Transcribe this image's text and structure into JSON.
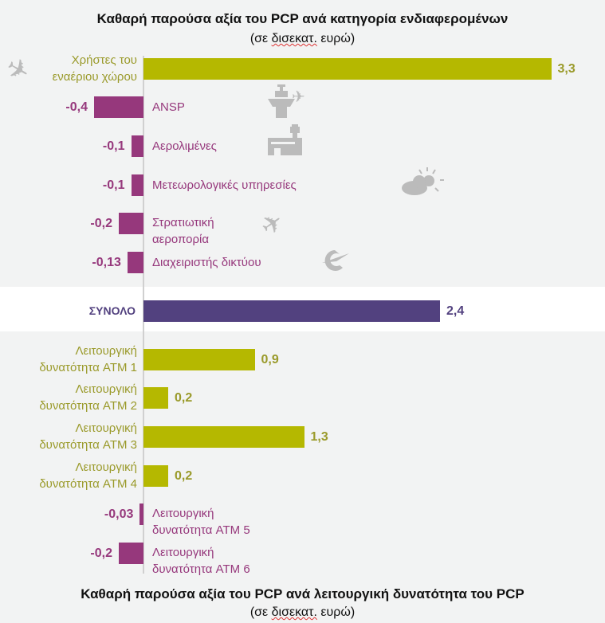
{
  "chart_data": {
    "type": "bar",
    "orientation": "horizontal",
    "title": "Καθαρή παρούσα αξία του PCP ανά κατηγορία ενδιαφερομένων",
    "subtitle_prefix": "(σε ",
    "subtitle_underlined": "δισεκατ.",
    "subtitle_suffix": " ευρώ)",
    "bottom_title": "Καθαρή παρούσα αξία του PCP ανά λειτουργική δυνατότητα του PCP",
    "categories": [
      "Χρήστες του εναέριου χώρου",
      "ANSP",
      "Αερολιμένες",
      "Μετεωρολογικές υπηρεσίες",
      "Στρατιωτική αεροπορία",
      "Διαχειριστής δικτύου",
      "ΣΥΝΟΛΟ",
      "Λειτουργική δυνατότητα ATM 1",
      "Λειτουργική δυνατότητα ATM 2",
      "Λειτουργική δυνατότητα ATM 3",
      "Λειτουργική δυνατότητα ATM 4",
      "Λειτουργική δυνατότητα ATM 5",
      "Λειτουργική δυνατότητα ATM 6"
    ],
    "label_lines": [
      [
        "Χρήστες του",
        "εναέριου χώρου"
      ],
      [
        "ANSP"
      ],
      [
        "Αερολιμένες"
      ],
      [
        "Μετεωρολογικές υπηρεσίες"
      ],
      [
        "Στρατιωτική",
        "αεροπορία"
      ],
      [
        "Διαχειριστής δικτύου"
      ],
      [
        "ΣΥΝΟΛΟ"
      ],
      [
        "Λειτουργική",
        "δυνατότητα ATM 1"
      ],
      [
        "Λειτουργική",
        "δυνατότητα ATM 2"
      ],
      [
        "Λειτουργική",
        "δυνατότητα ATM 3"
      ],
      [
        "Λειτουργική",
        "δυνατότητα ATM 4"
      ],
      [
        "Λειτουργική",
        "δυνατότητα ATM 5"
      ],
      [
        "Λειτουργική",
        "δυνατότητα ATM 6"
      ]
    ],
    "values": [
      3.3,
      -0.4,
      -0.1,
      -0.1,
      -0.2,
      -0.13,
      2.4,
      0.9,
      0.2,
      1.3,
      0.2,
      -0.03,
      -0.2
    ],
    "value_labels": [
      "3,3",
      "-0,4",
      "-0,1",
      "-0,1",
      "-0,2",
      "-0,13",
      "2,4",
      "0,9",
      "0,2",
      "1,3",
      "0,2",
      "-0,03",
      "-0,2"
    ],
    "icons": [
      "airplane-icon",
      "control-tower-icon",
      "airport-icon",
      "weather-icon",
      "military-jet-icon",
      "eurocontrol-logo-icon"
    ],
    "colors": {
      "positive": "#b5b800",
      "negative": "#96387c",
      "total": "#52417f",
      "positive_text": "#9a9a2a"
    }
  }
}
